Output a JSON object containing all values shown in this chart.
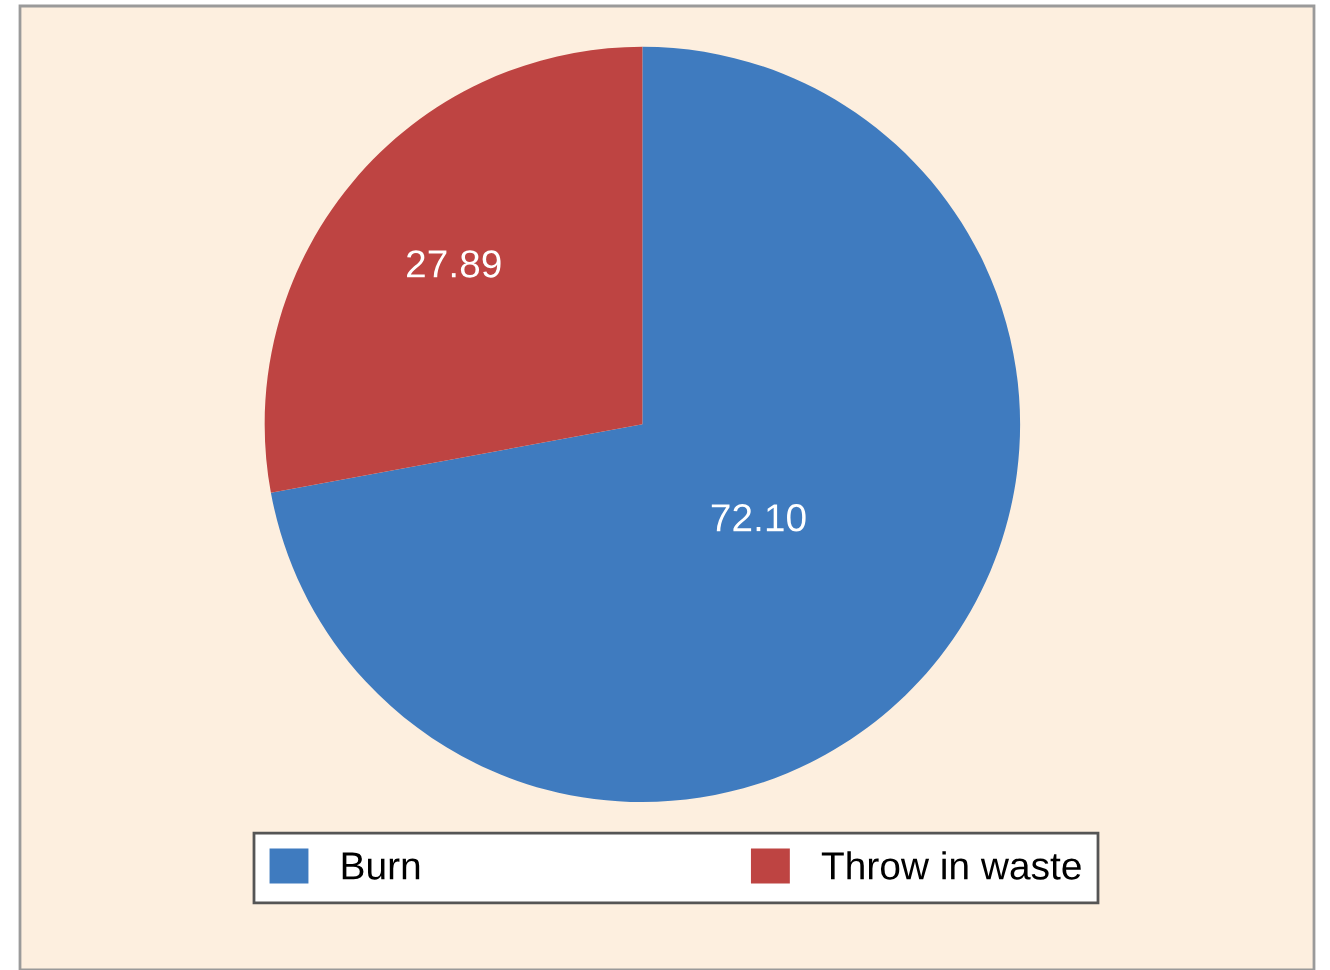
{
  "chart_data": {
    "type": "pie",
    "categories": [
      "Burn",
      "Throw in waste"
    ],
    "values": [
      72.1,
      27.89
    ],
    "value_labels": [
      "72.10",
      "27.89"
    ],
    "colors": [
      "#3f7bbf",
      "#be4442"
    ],
    "legend": "bottom"
  }
}
